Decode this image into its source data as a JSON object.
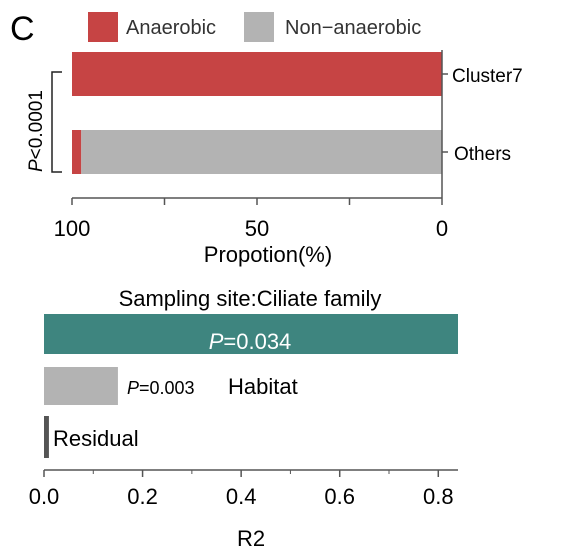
{
  "panel_label": "C",
  "chart_data": [
    {
      "type": "bar",
      "orientation": "horizontal",
      "stacked": true,
      "categories": [
        "Cluster7",
        "Others"
      ],
      "series": [
        {
          "name": "Anaerobic",
          "color": "#C64444",
          "values": [
            100,
            2.5
          ]
        },
        {
          "name": "Non−anaerobic",
          "color": "#B3B3B3",
          "values": [
            0,
            97.5
          ]
        }
      ],
      "xlabel": "Propotion(%)",
      "xticks": [
        "100",
        "50",
        "0"
      ],
      "xlim": [
        100,
        0
      ],
      "significance": "P<0.0001",
      "legend": "top"
    },
    {
      "type": "bar",
      "orientation": "horizontal",
      "title": "Sampling site:Ciliate family",
      "categories": [
        "Sampling site:Ciliate family",
        "Habitat",
        "Residual"
      ],
      "values": [
        0.84,
        0.15,
        0.01
      ],
      "colors": [
        "#3E857F",
        "#B3B3B3",
        "#555555"
      ],
      "bar_labels": [
        {
          "p": "P",
          "rest": "=0.034"
        },
        {
          "p": "P",
          "rest": "=0.003",
          "name": "Habitat"
        },
        {
          "name": "Residual"
        }
      ],
      "xlabel": "R2",
      "xticks": [
        "0.0",
        "0.2",
        "0.4",
        "0.6",
        "0.8"
      ],
      "xlim": [
        0,
        0.84
      ]
    }
  ]
}
